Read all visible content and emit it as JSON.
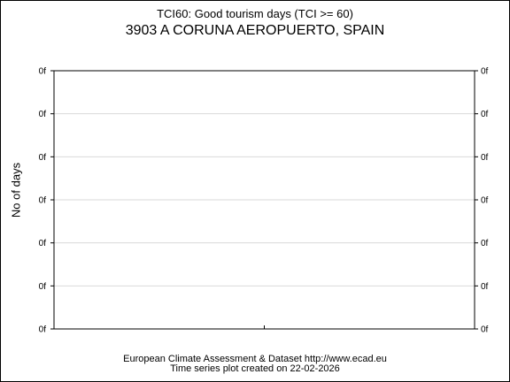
{
  "chart_data": {
    "type": "line",
    "title": "TCI60: Good tourism days (TCI >= 60)",
    "subtitle": "3903 A CORUNA AEROPUERTO, SPAIN",
    "ylabel": "No of days",
    "xlabel": "",
    "y_ticks": [
      "0f",
      "0f",
      "0f",
      "0f",
      "0f",
      "0f",
      "0f"
    ],
    "x_ticks": [],
    "grid": "horizontal",
    "series": []
  },
  "footer": {
    "line1": "European Climate Assessment & Dataset  http://www.ecad.eu",
    "line2": "Time series plot created on 22-02-2026"
  }
}
